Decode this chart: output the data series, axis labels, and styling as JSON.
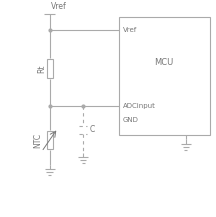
{
  "bg_color": "#ffffff",
  "line_color": "#aaaaaa",
  "text_color": "#777777",
  "fig_width": 2.16,
  "fig_height": 2.17,
  "dpi": 100,
  "vref_label": "Vref",
  "rt_label": "Rt",
  "ntc_label": "NTC",
  "c_label": "C",
  "mcu_label": "MCU",
  "vref_mcu_label": "Vref",
  "adcinput_label": "ADCinput",
  "gnd_label": "GND"
}
